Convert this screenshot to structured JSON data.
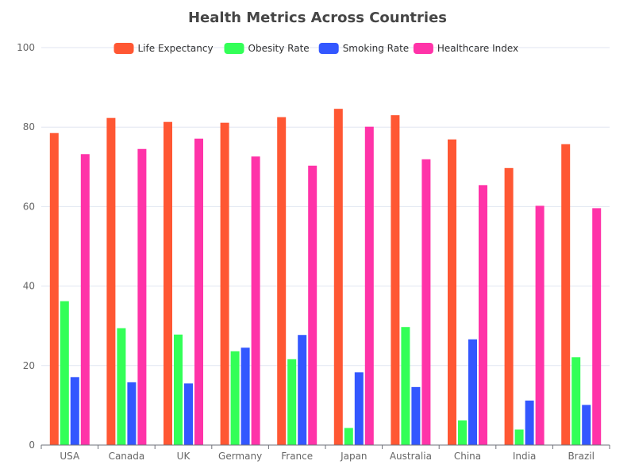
{
  "chart_data": {
    "type": "bar",
    "title": "Health Metrics Across Countries",
    "categories": [
      "USA",
      "Canada",
      "UK",
      "Germany",
      "France",
      "Japan",
      "Australia",
      "China",
      "India",
      "Brazil"
    ],
    "series": [
      {
        "name": "Life Expectancy",
        "color": "#ff5733",
        "values": [
          78.5,
          82.3,
          81.3,
          81.1,
          82.5,
          84.6,
          83.0,
          76.9,
          69.7,
          75.7
        ]
      },
      {
        "name": "Obesity Rate",
        "color": "#33ff57",
        "values": [
          36.2,
          29.4,
          27.8,
          23.6,
          21.6,
          4.3,
          29.7,
          6.2,
          3.9,
          22.1
        ]
      },
      {
        "name": "Smoking Rate",
        "color": "#3357ff",
        "values": [
          17.1,
          15.8,
          15.5,
          24.5,
          27.7,
          18.3,
          14.6,
          26.6,
          11.2,
          10.1
        ]
      },
      {
        "name": "Healthcare Index",
        "color": "#ff33a8",
        "values": [
          73.2,
          74.5,
          77.1,
          72.6,
          70.3,
          80.1,
          71.9,
          65.4,
          60.2,
          59.6
        ]
      }
    ],
    "xlabel": "",
    "ylabel": "",
    "ylim": [
      0,
      100
    ],
    "yticks": [
      0,
      20,
      40,
      60,
      80,
      100
    ],
    "grid": true,
    "legend_position": "top-center"
  }
}
